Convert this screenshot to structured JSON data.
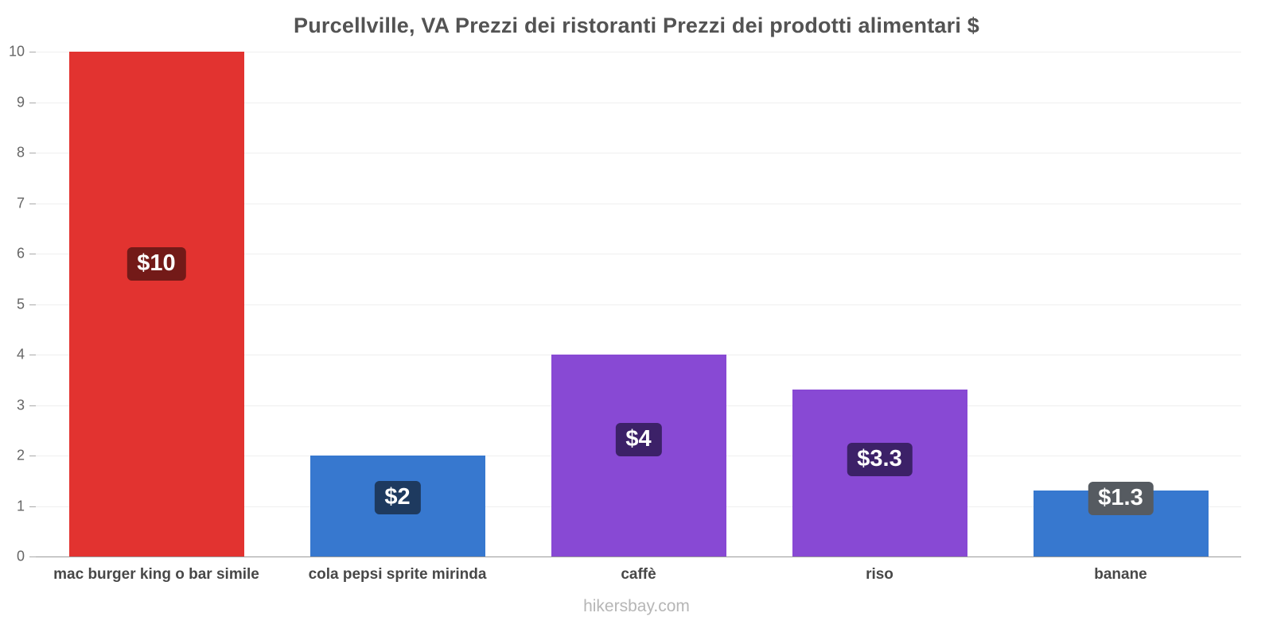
{
  "title": "Purcellville, VA Prezzi dei ristoranti Prezzi dei prodotti alimentari $",
  "footer": "hikersbay.com",
  "chart_data": {
    "type": "bar",
    "title": "Purcellville, VA Prezzi dei ristoranti Prezzi dei prodotti alimentari $",
    "categories": [
      "mac burger king o bar simile",
      "cola pepsi sprite mirinda",
      "caffè",
      "riso",
      "banane"
    ],
    "values": [
      10,
      2,
      4,
      3.3,
      1.3
    ],
    "value_labels": [
      "$10",
      "$2",
      "$4",
      "$3.3",
      "$1.3"
    ],
    "bar_colors": [
      "#e23330",
      "#3778cf",
      "#8849d4",
      "#8849d4",
      "#3778cf"
    ],
    "value_label_colors": [
      "#731a18",
      "#1e3a5f",
      "#3c2168",
      "#3c2168",
      "#565b61"
    ],
    "xlabel": "",
    "ylabel": "",
    "ylim": [
      0,
      10
    ],
    "yticks": [
      0,
      1,
      2,
      3,
      4,
      5,
      6,
      7,
      8,
      9,
      10
    ],
    "grid": true,
    "legend": "none"
  }
}
